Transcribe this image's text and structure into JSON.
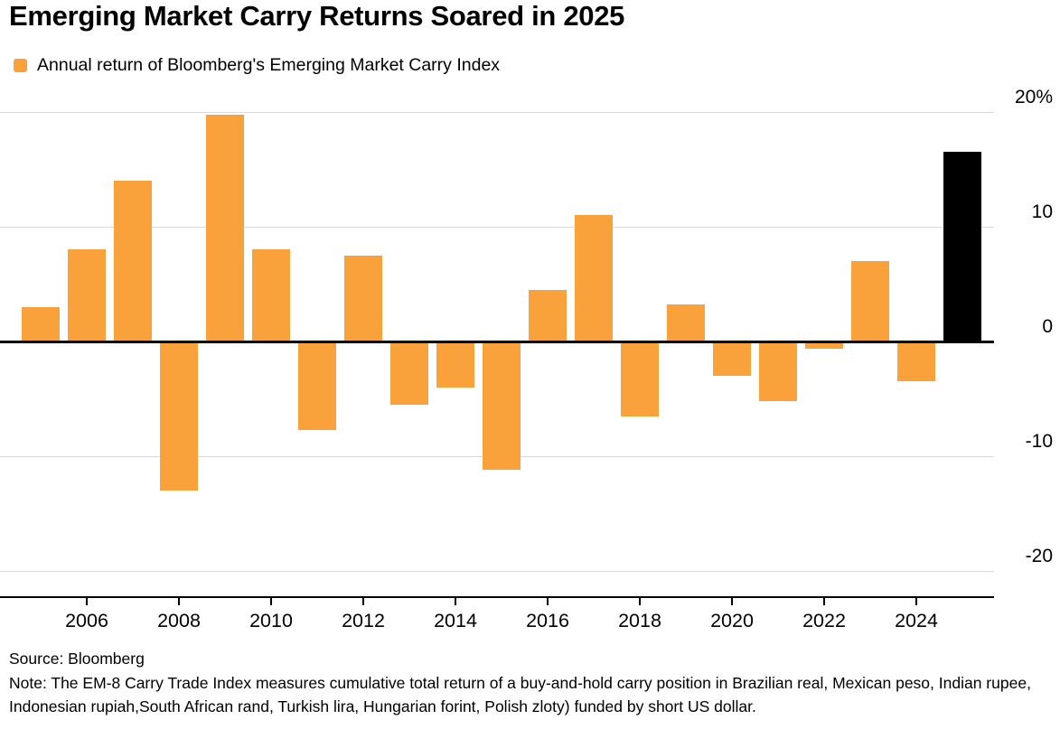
{
  "title": "Emerging Market Carry Returns Soared in 2025",
  "legend": {
    "label": "Annual return of Bloomberg's Emerging Market Carry Index",
    "marker_color": "#F9A23B"
  },
  "chart_data": {
    "type": "bar",
    "title": "Emerging Market Carry Returns Soared in 2025",
    "x": [
      2005,
      2006,
      2007,
      2008,
      2009,
      2010,
      2011,
      2012,
      2013,
      2014,
      2015,
      2016,
      2017,
      2018,
      2019,
      2020,
      2021,
      2022,
      2023,
      2024,
      2025
    ],
    "values": [
      3,
      8,
      14,
      -13,
      19.8,
      8,
      -7.7,
      7.5,
      -5.5,
      -4,
      -11.2,
      4.5,
      11,
      -6.5,
      3.2,
      -3,
      -5.2,
      -0.6,
      7,
      -3.5,
      16.5
    ],
    "bar_color": "#F9A23B",
    "highlight_year": 2025,
    "highlight_color": "#000000",
    "ylim": [
      -20,
      20
    ],
    "yticks": [
      {
        "value": 20,
        "label": "20%"
      },
      {
        "value": 10,
        "label": "10"
      },
      {
        "value": 0,
        "label": "0"
      },
      {
        "value": -10,
        "label": "-10"
      },
      {
        "value": -20,
        "label": "-20"
      }
    ],
    "xticks": [
      2006,
      2008,
      2010,
      2012,
      2014,
      2016,
      2018,
      2020,
      2022,
      2024
    ],
    "xlabel": "",
    "ylabel": "",
    "grid": "horizontal",
    "legend_position": "top-left"
  },
  "footer": {
    "source": "Source: Bloomberg",
    "note": "Note: The EM-8 Carry Trade Index measures cumulative total return of a buy-and-hold carry position in Brazilian real, Mexican peso, Indian rupee, Indonesian rupiah,South African rand, Turkish lira, Hungarian forint, Polish zloty) funded by short US dollar."
  }
}
